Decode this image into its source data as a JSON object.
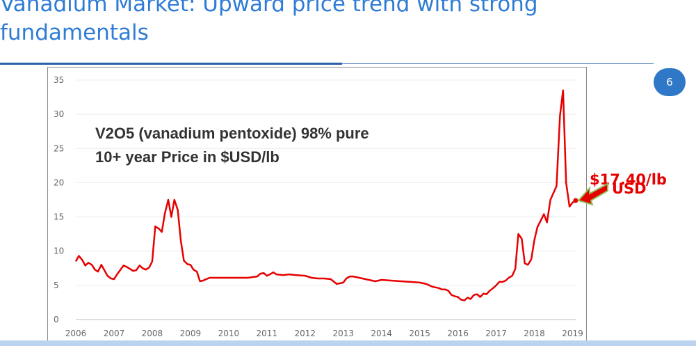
{
  "slide": {
    "title": "Vanadium Market: Upward price trend with strong fundamentals",
    "page_number": "6"
  },
  "callout": {
    "price": "$17.40/lb",
    "unit": "USD"
  },
  "colors": {
    "title": "#2f7cd6",
    "rule": "#2b5fa8",
    "badge": "#2f78c8",
    "series": "#e60000",
    "arrow": "#e60000"
  },
  "chart_data": {
    "type": "line",
    "title": "V2O5 (vanadium pentoxide) 98% pure",
    "subtitle": "10+ year Price in $USD/lb",
    "xlabel": "",
    "ylabel": "",
    "xlim": [
      2006,
      2019.1
    ],
    "ylim": [
      0,
      35
    ],
    "grid": true,
    "x_ticks": [
      "2006",
      "2007",
      "2008",
      "2009",
      "2010",
      "2011",
      "2012",
      "2013",
      "2014",
      "2015",
      "2016",
      "2017",
      "2018",
      "2019"
    ],
    "y_ticks": [
      "0",
      "5",
      "10",
      "15",
      "20",
      "25",
      "30",
      "35"
    ],
    "series": [
      {
        "color": "#e60000",
        "x": [
          2006.0,
          2006.08,
          2006.17,
          2006.25,
          2006.33,
          2006.42,
          2006.5,
          2006.58,
          2006.67,
          2006.75,
          2006.83,
          2006.92,
          2007.0,
          2007.08,
          2007.17,
          2007.25,
          2007.33,
          2007.42,
          2007.5,
          2007.58,
          2007.67,
          2007.75,
          2007.83,
          2007.92,
          2008.0,
          2008.08,
          2008.17,
          2008.25,
          2008.33,
          2008.42,
          2008.5,
          2008.58,
          2008.67,
          2008.75,
          2008.83,
          2008.92,
          2009.0,
          2009.08,
          2009.17,
          2009.25,
          2009.33,
          2009.5,
          2009.75,
          2010.0,
          2010.25,
          2010.5,
          2010.75,
          2010.83,
          2010.92,
          2011.0,
          2011.08,
          2011.17,
          2011.25,
          2011.42,
          2011.58,
          2011.75,
          2012.0,
          2012.17,
          2012.33,
          2012.5,
          2012.67,
          2012.83,
          2013.0,
          2013.08,
          2013.17,
          2013.25,
          2013.42,
          2013.58,
          2013.75,
          2013.83,
          2013.92,
          2014.0,
          2014.25,
          2014.5,
          2014.75,
          2015.0,
          2015.17,
          2015.33,
          2015.5,
          2015.58,
          2015.67,
          2015.75,
          2015.83,
          2015.92,
          2016.0,
          2016.08,
          2016.17,
          2016.25,
          2016.33,
          2016.42,
          2016.5,
          2016.58,
          2016.67,
          2016.75,
          2016.83,
          2016.92,
          2017.0,
          2017.08,
          2017.17,
          2017.25,
          2017.33,
          2017.42,
          2017.5,
          2017.58,
          2017.67,
          2017.75,
          2017.83,
          2017.92,
          2018.0,
          2018.08,
          2018.17,
          2018.25,
          2018.33,
          2018.42,
          2018.5,
          2018.58,
          2018.67,
          2018.75,
          2018.83,
          2018.92,
          2019.0,
          2019.08
        ],
        "y": [
          8.5,
          9.3,
          8.7,
          7.9,
          8.3,
          8.0,
          7.3,
          7.0,
          8.0,
          7.2,
          6.4,
          6.0,
          5.9,
          6.6,
          7.3,
          7.9,
          7.7,
          7.4,
          7.1,
          7.2,
          7.9,
          7.5,
          7.3,
          7.6,
          8.5,
          13.6,
          13.3,
          12.8,
          15.5,
          17.5,
          15.0,
          17.5,
          16.0,
          11.5,
          8.6,
          8.1,
          8.0,
          7.3,
          7.0,
          5.6,
          5.7,
          6.1,
          6.1,
          6.1,
          6.1,
          6.1,
          6.3,
          6.7,
          6.8,
          6.4,
          6.6,
          6.9,
          6.6,
          6.5,
          6.6,
          6.5,
          6.4,
          6.1,
          6.0,
          6.0,
          5.9,
          5.2,
          5.4,
          6.0,
          6.3,
          6.3,
          6.1,
          5.9,
          5.7,
          5.6,
          5.7,
          5.8,
          5.7,
          5.6,
          5.5,
          5.4,
          5.2,
          4.8,
          4.6,
          4.4,
          4.4,
          4.2,
          3.6,
          3.4,
          3.3,
          2.9,
          2.8,
          3.2,
          3.0,
          3.6,
          3.7,
          3.3,
          3.8,
          3.7,
          4.2,
          4.6,
          5.0,
          5.5,
          5.5,
          5.7,
          6.1,
          6.4,
          7.4,
          12.5,
          11.8,
          8.2,
          8.0,
          8.8,
          11.6,
          13.5,
          14.5,
          15.4,
          14.2,
          17.5,
          18.5,
          19.5,
          29.8,
          33.5,
          20.0,
          16.5,
          17.1,
          17.4
        ]
      }
    ]
  }
}
